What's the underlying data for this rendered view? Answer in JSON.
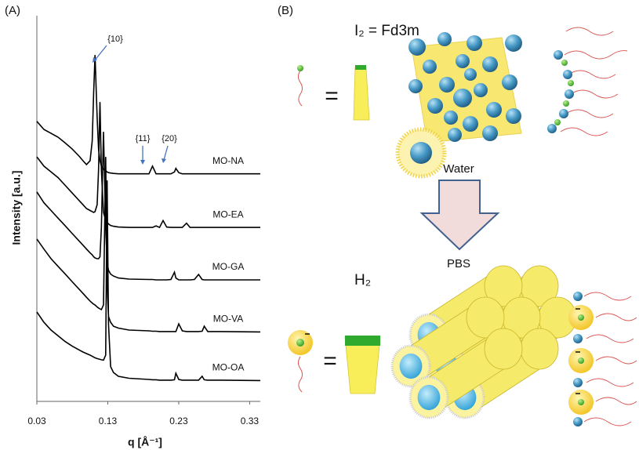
{
  "figure": {
    "panel_a": "(A)",
    "panel_b": "(B)"
  },
  "chart_data": {
    "type": "line",
    "x_label": "q [Å⁻¹]",
    "y_label": "Intensity [a.u.]",
    "annotations": [
      "{10}",
      "{11}",
      "{20}"
    ],
    "x": [
      0.03,
      0.04,
      0.05,
      0.06,
      0.07,
      0.08,
      0.09,
      0.095,
      0.1,
      0.105,
      0.108,
      0.11,
      0.112,
      0.115,
      0.117,
      0.119,
      0.121,
      0.124,
      0.127,
      0.129,
      0.131,
      0.134,
      0.138,
      0.145,
      0.16,
      0.188,
      0.193,
      0.198,
      0.203,
      0.208,
      0.213,
      0.219,
      0.224,
      0.226,
      0.23,
      0.235,
      0.241,
      0.246,
      0.252,
      0.258,
      0.263,
      0.266,
      0.271,
      0.29,
      0.345
    ],
    "series": [
      {
        "name": "MO-NA",
        "color": "#000000",
        "values": [
          72.6,
          70.5,
          69.5,
          68.5,
          67,
          65.4,
          63.5,
          62.4,
          61.4,
          62.4,
          67.5,
          79.7,
          89.8,
          73.6,
          65.4,
          62.4,
          61,
          60.2,
          59.8,
          59.5,
          59.3,
          59.2,
          59.1,
          59,
          59,
          59,
          61,
          59,
          59,
          59,
          59,
          59,
          59.5,
          60.4,
          59.3,
          59,
          59,
          59,
          59,
          59,
          59,
          59,
          59,
          59,
          59
        ]
      },
      {
        "name": "MO-EA",
        "color": "#000000",
        "values": [
          63.4,
          61,
          59.5,
          58,
          56,
          54,
          52,
          51,
          50,
          49.5,
          49.2,
          49,
          49.2,
          51,
          60,
          77.6,
          60,
          49,
          47,
          46.5,
          46,
          45.6,
          45.4,
          45.2,
          45.1,
          45.1,
          45.1,
          45.5,
          45.1,
          46.9,
          45.2,
          45.1,
          45.1,
          45.1,
          45.1,
          45.1,
          46.2,
          45.1,
          45.1,
          45.1,
          45.1,
          45.1,
          45.1,
          45.1,
          45.1
        ]
      },
      {
        "name": "MO-GA",
        "color": "#000000",
        "values": [
          54.3,
          51.5,
          49.5,
          47.5,
          45.5,
          43.5,
          41.5,
          40.5,
          39.5,
          38.5,
          38,
          37.5,
          37.2,
          37,
          37,
          37.5,
          45,
          69.9,
          45,
          36,
          34,
          33,
          32.5,
          32,
          31.7,
          31.6,
          31.6,
          31.5,
          31.5,
          31.5,
          31.5,
          31.6,
          33.5,
          32,
          31.5,
          31.5,
          31.5,
          31.5,
          31.6,
          32.9,
          31.6,
          31.5,
          31.5,
          31.5,
          31.5
        ]
      },
      {
        "name": "MO-VA",
        "color": "#000000",
        "values": [
          42.1,
          39.5,
          37,
          35,
          33,
          31,
          29,
          28,
          27,
          26,
          25.5,
          25.2,
          25,
          24.5,
          24.2,
          24,
          23.8,
          25,
          63.4,
          30,
          22,
          20.5,
          19.5,
          19,
          18.5,
          18.3,
          18.2,
          18.2,
          18.1,
          18.1,
          18.1,
          18.1,
          18.1,
          18.1,
          20.1,
          18.3,
          18.1,
          18.1,
          18.1,
          18.1,
          18.2,
          19.5,
          18.1,
          18.1,
          18
        ]
      },
      {
        "name": "MO-OA",
        "color": "#000000",
        "values": [
          23.2,
          20.5,
          18.5,
          17,
          15.5,
          14.3,
          13.3,
          12.8,
          12.4,
          12,
          11.7,
          11.5,
          11.3,
          11.1,
          11,
          10.9,
          10.8,
          10.7,
          12,
          57.3,
          20,
          9,
          7.5,
          6.5,
          6,
          5.7,
          5.6,
          5.6,
          5.5,
          5.5,
          5.5,
          5.5,
          5.6,
          7.3,
          5.7,
          5.5,
          5.5,
          5.5,
          5.5,
          5.5,
          6.5,
          5.6,
          5.5,
          5.5,
          5.4
        ]
      }
    ],
    "xlim": [
      0.03,
      0.345
    ],
    "xticks": [
      0.03,
      0.13,
      0.23,
      0.33
    ],
    "ylim": [
      0,
      100
    ],
    "yticks": [],
    "grid": false
  },
  "diagram": {
    "cubic_phase": "I₂ = Fd3m",
    "equals": "=",
    "water": "Water",
    "pbs": "PBS",
    "hexagonal_phase": "H₂"
  }
}
